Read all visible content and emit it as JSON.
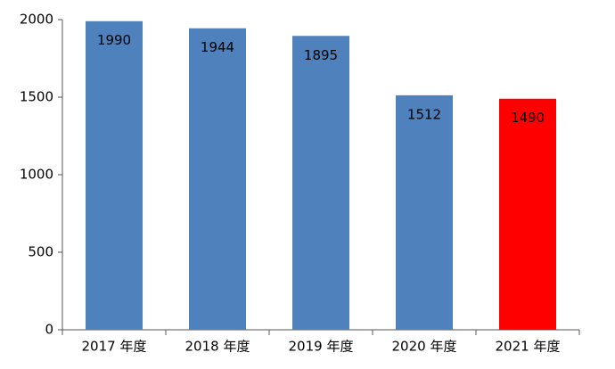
{
  "chart_data": {
    "type": "bar",
    "categories": [
      "2017 年度",
      "2018 年度",
      "2019 年度",
      "2020 年度",
      "2021 年度"
    ],
    "values": [
      1990,
      1944,
      1895,
      1512,
      1490
    ],
    "colors": [
      "#4f81bd",
      "#4f81bd",
      "#4f81bd",
      "#4f81bd",
      "#ff0000"
    ],
    "ylim": [
      0,
      2000
    ],
    "yticks": [
      0,
      500,
      1000,
      1500,
      2000
    ]
  }
}
